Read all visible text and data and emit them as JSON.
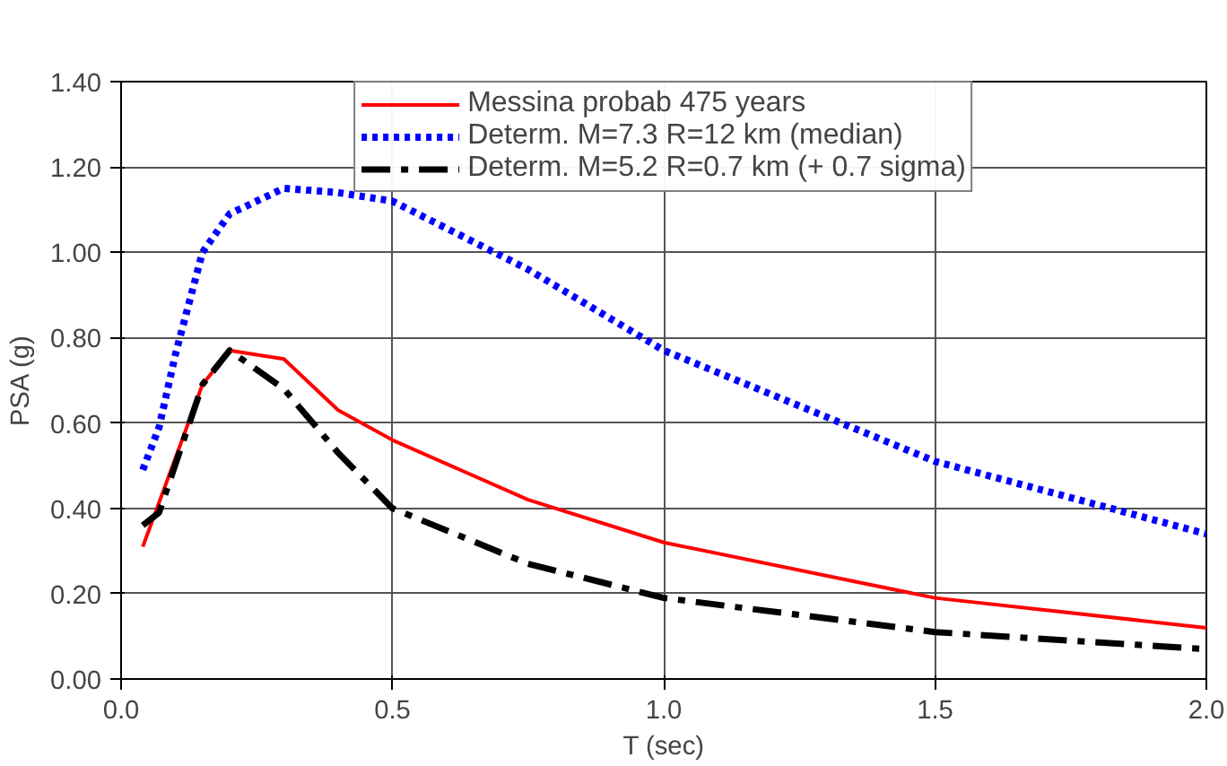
{
  "chart_data": {
    "type": "line",
    "xlabel": "T (sec)",
    "ylabel": "PSA (g)",
    "xlim": [
      0,
      2.0
    ],
    "ylim": [
      0,
      1.4
    ],
    "xticks": [
      {
        "value": 0,
        "label": "0.0"
      },
      {
        "value": 0.5,
        "label": "0.5"
      },
      {
        "value": 1,
        "label": "1.0"
      },
      {
        "value": 1.5,
        "label": "1.5"
      },
      {
        "value": 2,
        "label": "2.0"
      }
    ],
    "yticks": [
      {
        "value": 0,
        "label": "0.00"
      },
      {
        "value": 0.2,
        "label": "0.20"
      },
      {
        "value": 0.4,
        "label": "0.40"
      },
      {
        "value": 0.6,
        "label": "0.60"
      },
      {
        "value": 0.8,
        "label": "0.80"
      },
      {
        "value": 1.0,
        "label": "1.00"
      },
      {
        "value": 1.2,
        "label": "1.20"
      },
      {
        "value": 1.4,
        "label": "1.40"
      }
    ],
    "grid": true,
    "legend": "top",
    "marker": "none",
    "series": [
      {
        "name": "Messina probab 475 years",
        "color": "#ff0000",
        "line_style": "solid",
        "x": [
          0.04,
          0.15,
          0.2,
          0.3,
          0.4,
          0.5,
          0.75,
          1.0,
          1.5,
          2.0
        ],
        "values": [
          0.31,
          0.69,
          0.77,
          0.75,
          0.63,
          0.56,
          0.42,
          0.32,
          0.19,
          0.12
        ]
      },
      {
        "name": "Determ. M=7.3 R=12 km (median)",
        "color": "#0000ff",
        "line_style": "dotted",
        "x": [
          0.04,
          0.07,
          0.1,
          0.15,
          0.2,
          0.3,
          0.4,
          0.5,
          0.75,
          1.0,
          1.5,
          2.0
        ],
        "values": [
          0.49,
          0.59,
          0.76,
          1.0,
          1.09,
          1.15,
          1.14,
          1.12,
          0.96,
          0.77,
          0.51,
          0.34
        ]
      },
      {
        "name": "Determ. M=5.2 R=0.7 km (+ 0.7 sigma)",
        "color": "#000000",
        "line_style": "dashdot",
        "x": [
          0.04,
          0.07,
          0.15,
          0.2,
          0.3,
          0.4,
          0.5,
          0.75,
          1.0,
          1.5,
          2.0
        ],
        "values": [
          0.36,
          0.39,
          0.69,
          0.77,
          0.68,
          0.53,
          0.4,
          0.27,
          0.19,
          0.11,
          0.07
        ]
      }
    ]
  }
}
